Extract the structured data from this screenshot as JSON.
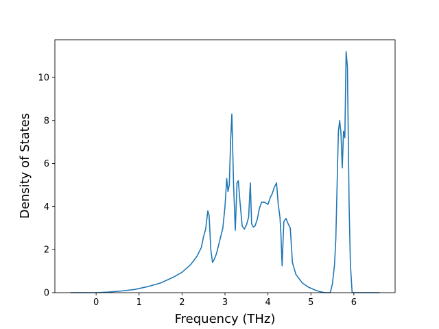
{
  "chart_data": {
    "type": "line",
    "title": "",
    "xlabel": "Frequency (THz)",
    "ylabel": "Density of States",
    "xlim": [
      -0.96,
      6.96
    ],
    "ylim": [
      0,
      11.75
    ],
    "grid": false,
    "legend": "none",
    "x_ticks": [
      0,
      1,
      2,
      3,
      4,
      5,
      6
    ],
    "x_tick_labels": [
      "0",
      "1",
      "2",
      "3",
      "4",
      "5",
      "6"
    ],
    "y_ticks": [
      0,
      2,
      4,
      6,
      8,
      10
    ],
    "y_tick_labels": [
      "0",
      "2",
      "4",
      "6",
      "8",
      "10"
    ],
    "series": [
      {
        "color": "#1f77b4",
        "x": [
          -0.6,
          0.0,
          0.3,
          0.6,
          0.9,
          1.2,
          1.5,
          1.8,
          2.0,
          2.2,
          2.35,
          2.45,
          2.5,
          2.55,
          2.6,
          2.63,
          2.67,
          2.71,
          2.75,
          2.8,
          2.85,
          2.9,
          2.95,
          3.0,
          3.04,
          3.07,
          3.1,
          3.13,
          3.16,
          3.2,
          3.24,
          3.28,
          3.31,
          3.35,
          3.4,
          3.45,
          3.5,
          3.55,
          3.59,
          3.62,
          3.66,
          3.7,
          3.75,
          3.8,
          3.85,
          3.92,
          4.0,
          4.05,
          4.1,
          4.15,
          4.2,
          4.24,
          4.28,
          4.3,
          4.33,
          4.37,
          4.42,
          4.47,
          4.52,
          4.57,
          4.65,
          4.8,
          4.95,
          5.1,
          5.2,
          5.3,
          5.38,
          5.45,
          5.5,
          5.55,
          5.58,
          5.61,
          5.64,
          5.67,
          5.7,
          5.73,
          5.76,
          5.79,
          5.82,
          5.85,
          5.89,
          5.92,
          5.96,
          6.0,
          6.3,
          6.6
        ],
        "y": [
          0.0,
          0.0,
          0.03,
          0.08,
          0.15,
          0.28,
          0.45,
          0.72,
          0.95,
          1.3,
          1.7,
          2.1,
          2.6,
          2.95,
          3.8,
          3.6,
          2.0,
          1.4,
          1.55,
          1.8,
          2.2,
          2.6,
          3.0,
          4.0,
          5.3,
          4.7,
          5.0,
          7.0,
          8.3,
          5.0,
          2.9,
          5.1,
          5.2,
          4.2,
          3.1,
          2.95,
          3.15,
          3.5,
          5.1,
          3.2,
          3.05,
          3.1,
          3.4,
          3.9,
          4.2,
          4.2,
          4.1,
          4.4,
          4.6,
          4.9,
          5.1,
          4.1,
          3.5,
          2.8,
          1.25,
          3.3,
          3.45,
          3.2,
          3.0,
          1.4,
          0.85,
          0.45,
          0.25,
          0.12,
          0.05,
          0.01,
          0.0,
          0.0,
          0.4,
          1.3,
          2.5,
          5.0,
          7.5,
          8.0,
          7.4,
          5.8,
          7.5,
          7.2,
          11.2,
          10.5,
          4.0,
          1.3,
          0.0,
          0.0,
          0.0,
          0.0
        ]
      }
    ]
  }
}
